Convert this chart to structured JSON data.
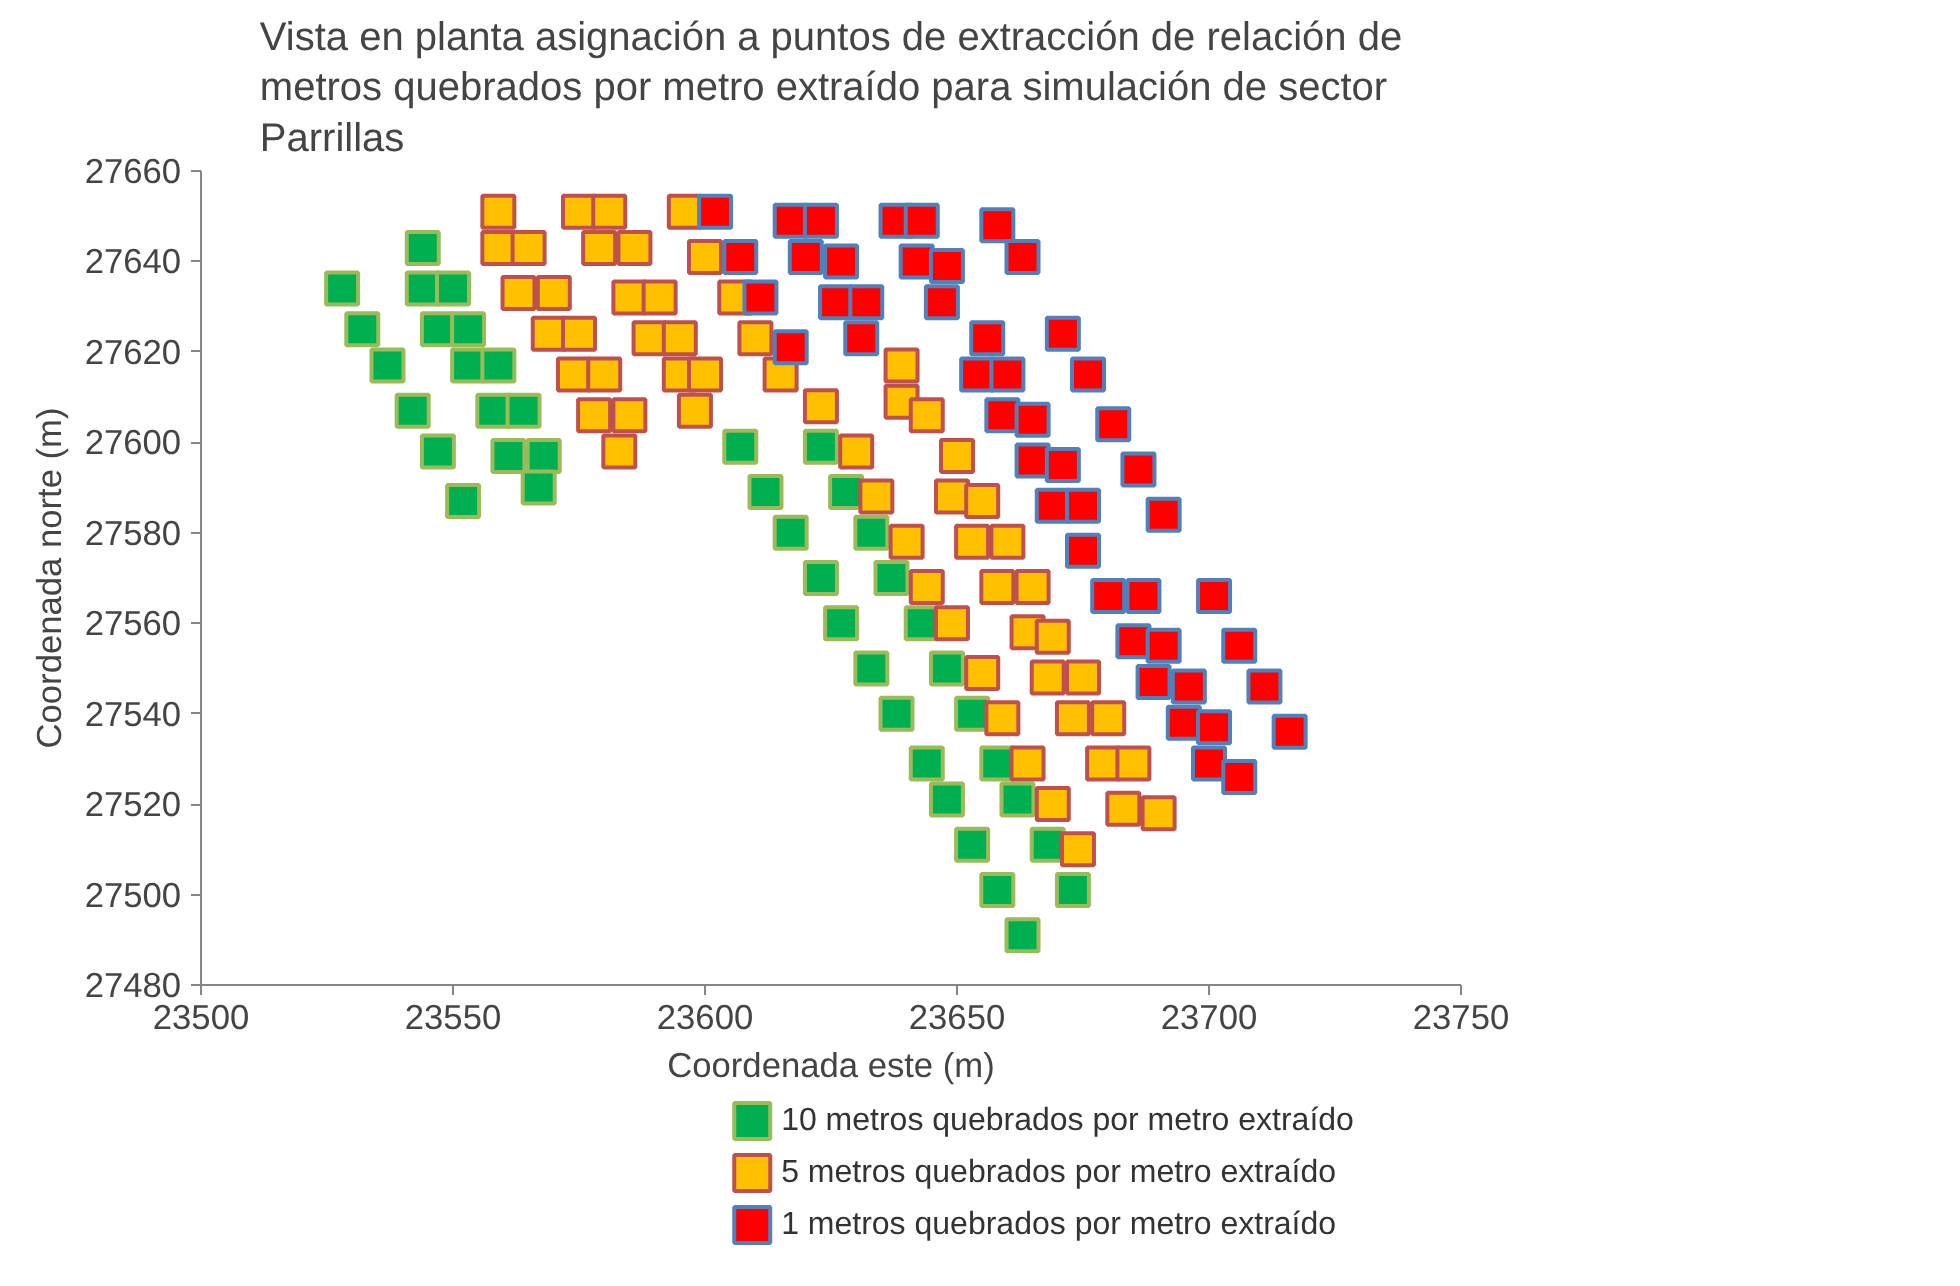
{
  "chart_data": {
    "type": "scatter",
    "title": "Vista en planta asignación a puntos de extracción de relación de metros quebrados por metro extraído para simulación de sector Parrillas",
    "xlabel": "Coordenada este (m)",
    "ylabel": "Coordenada norte (m)",
    "xlim": [
      23500,
      23750
    ],
    "ylim": [
      27480,
      27660
    ],
    "xticks": [
      23500,
      23550,
      23600,
      23650,
      23700,
      23750
    ],
    "yticks": [
      27480,
      27500,
      27520,
      27540,
      27560,
      27580,
      27600,
      27620,
      27640,
      27660
    ],
    "grid": false,
    "legend": "bottom",
    "marker": "square",
    "series": [
      {
        "name": "10 metros quebrados por metro extraído",
        "color": "#00b050",
        "x": [
          23528,
          23532,
          23537,
          23542,
          23547,
          23552,
          23544,
          23544,
          23550,
          23547,
          23553,
          23553,
          23559,
          23558,
          23564,
          23561,
          23568,
          23567,
          23607,
          23612,
          23617,
          23623,
          23627,
          23633,
          23638,
          23644,
          23648,
          23653,
          23658,
          23663,
          23623,
          23628,
          23633,
          23637,
          23643,
          23648,
          23653,
          23658,
          23662,
          23668,
          23673
        ],
        "values": [
          27634,
          27625,
          27617,
          27607,
          27598,
          27587,
          27643,
          27634,
          27634,
          27625,
          27625,
          27617,
          27617,
          27607,
          27607,
          27597,
          27597,
          27590,
          27599,
          27589,
          27580,
          27570,
          27560,
          27550,
          27540,
          27529,
          27521,
          27511,
          27501,
          27491,
          27599,
          27589,
          27580,
          27570,
          27560,
          27550,
          27540,
          27529,
          27521,
          27511,
          27501
        ]
      },
      {
        "name": "5 metros quebrados por metro extraído",
        "color": "#ffc000",
        "x": [
          23559,
          23559,
          23565,
          23563,
          23570,
          23569,
          23575,
          23574,
          23580,
          23578,
          23585,
          23583,
          23575,
          23581,
          23579,
          23586,
          23585,
          23591,
          23589,
          23595,
          23595,
          23600,
          23598,
          23596,
          23600,
          23606,
          23610,
          23615,
          23623,
          23630,
          23634,
          23640,
          23644,
          23649,
          23655,
          23659,
          23664,
          23669,
          23674,
          23639,
          23639,
          23644,
          23650,
          23649,
          23655,
          23653,
          23660,
          23658,
          23665,
          23664,
          23669,
          23668,
          23675,
          23673,
          23680,
          23679,
          23685,
          23683,
          23690
        ],
        "values": [
          27651,
          27643,
          27643,
          27633,
          27633,
          27624,
          27624,
          27615,
          27615,
          27606,
          27606,
          27598,
          27651,
          27651,
          27643,
          27643,
          27632,
          27632,
          27623,
          27623,
          27615,
          27615,
          27607,
          27651,
          27641,
          27632,
          27623,
          27615,
          27608,
          27598,
          27588,
          27578,
          27568,
          27560,
          27549,
          27539,
          27529,
          27520,
          27510,
          27617,
          27609,
          27606,
          27597,
          27588,
          27587,
          27578,
          27578,
          27568,
          27568,
          27558,
          27557,
          27548,
          27548,
          27539,
          27539,
          27529,
          27529,
          27519,
          27518
        ]
      },
      {
        "name": "1 metros quebrados por metro extraído",
        "color": "#ff0000",
        "x": [
          23602,
          23607,
          23611,
          23617,
          23617,
          23623,
          23620,
          23627,
          23626,
          23632,
          23631,
          23638,
          23643,
          23642,
          23648,
          23647,
          23658,
          23663,
          23656,
          23654,
          23660,
          23659,
          23665,
          23665,
          23671,
          23669,
          23675,
          23675,
          23680,
          23687,
          23671,
          23676,
          23681,
          23686,
          23691,
          23701,
          23706,
          23711,
          23716,
          23685,
          23691,
          23689,
          23696,
          23695,
          23701,
          23700,
          23706
        ],
        "values": [
          27651,
          27641,
          27632,
          27621,
          27649,
          27649,
          27641,
          27640,
          27631,
          27631,
          27623,
          27649,
          27649,
          27640,
          27639,
          27631,
          27648,
          27641,
          27623,
          27615,
          27615,
          27606,
          27605,
          27596,
          27595,
          27586,
          27586,
          27576,
          27566,
          27566,
          27624,
          27615,
          27604,
          27594,
          27584,
          27566,
          27555,
          27546,
          27536,
          27556,
          27555,
          27547,
          27546,
          27538,
          27537,
          27529,
          27526
        ]
      }
    ]
  }
}
